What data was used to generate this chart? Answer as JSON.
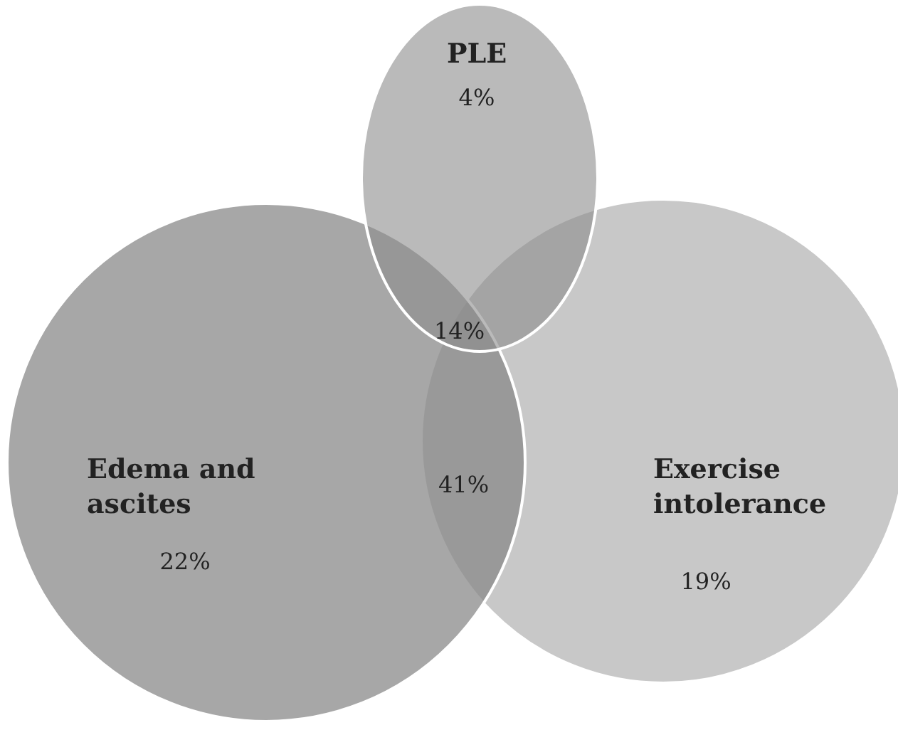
{
  "chart_data": {
    "type": "other",
    "categories": [
      "PLE",
      "Edema and ascites",
      "Exercise intolerance"
    ],
    "values": [
      4,
      22,
      19
    ],
    "value_labels": [
      "4%",
      "22%",
      "19%"
    ],
    "colors": [
      "#8c8c8c",
      "#8a8a8a",
      "#c8c8c8"
    ],
    "annotations": [
      "14%",
      "41%"
    ]
  }
}
